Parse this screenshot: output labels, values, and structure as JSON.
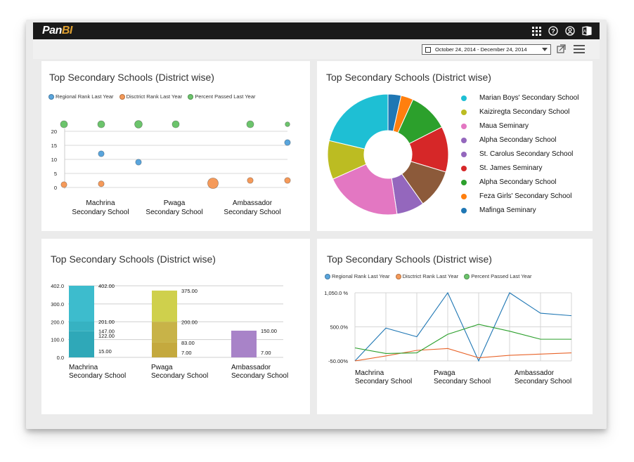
{
  "app": {
    "logo_main": "Pan",
    "logo_accent": "BI"
  },
  "toolbar": {
    "date_range": "October 24, 2014 - December 24, 2014"
  },
  "colors": {
    "blue": "#5aa5dc",
    "orange": "#f59a5a",
    "green": "#6cc46c"
  },
  "panel1": {
    "title": "Top Secondary Schools (District wise)",
    "legend": [
      "Regional Rank Last Year",
      "Disctrict Rank Last Year",
      "Percent Passed Last Year"
    ],
    "y_ticks": [
      "20",
      "15",
      "10",
      "5",
      "0"
    ],
    "x_labels": [
      {
        "line1": "Machrina",
        "line2": "Secondary School"
      },
      {
        "line1": "Pwaga",
        "line2": "Secondary School"
      },
      {
        "line1": "Ambassador",
        "line2": "Secondary School"
      }
    ]
  },
  "panel2": {
    "title": "Top Secondary Schools (District wise)",
    "legend": [
      {
        "label": "Marian Boys' Secondary School",
        "color": "#1ebfd4"
      },
      {
        "label": "Kaiziregta Secondary School",
        "color": "#bcbc22"
      },
      {
        "label": "Maua Seminary",
        "color": "#e377c2"
      },
      {
        "label": "Alpha Secondary School",
        "color": "#9467bd"
      },
      {
        "label": "St. Carolus Secondary School",
        "color": "#9467bd"
      },
      {
        "label": "St. James Seminary",
        "color": "#d62728"
      },
      {
        "label": "Alpha Secondary School",
        "color": "#2ca02c"
      },
      {
        "label": "Feza Girls' Secondary School",
        "color": "#ff7f0e"
      },
      {
        "label": "Mafinga Seminary",
        "color": "#1f77b4"
      }
    ]
  },
  "panel3": {
    "title": "Top Secondary Schools (District wise)",
    "y_ticks": [
      "402.0",
      "300.0",
      "200.0",
      "100.0",
      "0.0"
    ],
    "x_labels": [
      {
        "line1": "Machrina",
        "line2": "Secondary School"
      },
      {
        "line1": "Pwaga",
        "line2": "Secondary School"
      },
      {
        "line1": "Ambassador",
        "line2": "Secondary School"
      }
    ]
  },
  "panel4": {
    "title": "Top Secondary Schools (District wise)",
    "legend": [
      "Regional Rank Last Year",
      "Disctrict Rank Last Year",
      "Percent Passed Last Year"
    ],
    "y_ticks": [
      "1,050.0 %",
      "500.0%",
      "-50.00%"
    ],
    "x_labels": [
      {
        "line1": "Machrina",
        "line2": "Secondary School"
      },
      {
        "line1": "Pwaga",
        "line2": "Secondary School"
      },
      {
        "line1": "Ambassador",
        "line2": "Secondary School"
      }
    ]
  },
  "chart_data": [
    {
      "type": "scatter",
      "title": "Top Secondary Schools (District wise)",
      "ylim": [
        0,
        20
      ],
      "x": [
        0,
        1,
        2,
        3,
        4,
        5,
        6
      ],
      "series": [
        {
          "name": "Regional Rank Last Year",
          "color": "#5aa5dc",
          "x": [
            1,
            2,
            6
          ],
          "y": [
            12,
            9,
            16
          ]
        },
        {
          "name": "Disctrict Rank Last Year",
          "color": "#f59a5a",
          "x": [
            0,
            1,
            4,
            5,
            6
          ],
          "y": [
            1,
            1.3,
            1.5,
            2.5,
            2.5
          ],
          "sizes": [
            1,
            1,
            1.8,
            1,
            1
          ]
        },
        {
          "name": "Percent Passed Last Year",
          "color": "#6cc46c",
          "x": [
            0,
            1,
            2,
            3,
            5,
            6
          ],
          "y": [
            22.5,
            22.5,
            22.5,
            22.5,
            22.5,
            22.5
          ],
          "sizes": [
            1.2,
            1.2,
            1.3,
            1.2,
            1.2,
            0.8
          ]
        }
      ]
    },
    {
      "type": "pie",
      "title": "Top Secondary Schools (District wise)",
      "slices": [
        {
          "label": "Mafinga Seminary",
          "value": 3.5,
          "color": "#1f77b4"
        },
        {
          "label": "Feza Girls' Secondary School",
          "value": 3.3,
          "color": "#ff7f0e"
        },
        {
          "label": "Alpha Secondary School",
          "value": 10.7,
          "color": "#2ca02c"
        },
        {
          "label": "St. James Seminary",
          "value": 12.2,
          "color": "#d62728"
        },
        {
          "label": "St. Carolus Secondary School",
          "value": 10.5,
          "color": "#8c5a3a"
        },
        {
          "label": "Alpha Secondary School",
          "value": 7.4,
          "color": "#9467bd"
        },
        {
          "label": "Maua Seminary",
          "value": 20.7,
          "color": "#e377c2"
        },
        {
          "label": "Kaiziregta Secondary School",
          "value": 10.4,
          "color": "#bcbc22"
        },
        {
          "label": "Marian Boys' Secondary School",
          "value": 21.3,
          "color": "#1ebfd4"
        }
      ]
    },
    {
      "type": "bar",
      "title": "Top Secondary Schools (District wise)",
      "ylim": [
        0,
        402
      ],
      "categories": [
        "Machrina Secondary School",
        "Pwaga Secondary School",
        "Ambassador Secondary School"
      ],
      "stacks": [
        {
          "colors": [
            "#2fa8b8",
            "#36b2c2",
            "#3dbccd",
            "#4ccfdd"
          ],
          "segment_tops": [
            147,
            201,
            402
          ],
          "labels": [
            "402.00",
            "201.00",
            "147.00",
            "122.00",
            "15.00"
          ],
          "label_values": [
            402,
            201,
            147,
            122,
            15
          ]
        },
        {
          "colors": [
            "#c4a93e",
            "#c8b348",
            "#cfd04c"
          ],
          "segment_tops": [
            83,
            200,
            375
          ],
          "labels": [
            "375.00",
            "200.00",
            "83.00",
            "7.00"
          ],
          "label_values": [
            375,
            200,
            83,
            7
          ]
        },
        {
          "colors": [
            "#a883c8"
          ],
          "segment_tops": [
            150
          ],
          "labels": [
            "150.00",
            "7.00"
          ],
          "label_values": [
            150,
            7
          ]
        }
      ]
    },
    {
      "type": "line",
      "title": "Top Secondary Schools (District wise)",
      "ylim": [
        -50,
        1050
      ],
      "x": [
        0,
        1,
        2,
        3,
        4,
        5,
        6,
        7
      ],
      "series": [
        {
          "name": "Regional Rank Last Year",
          "color": "#1f77b4",
          "values": [
            -50,
            480,
            340,
            1050,
            -50,
            1050,
            720,
            680
          ]
        },
        {
          "name": "Disctrict Rank Last Year",
          "color": "#e8642a",
          "values": [
            -50,
            30,
            120,
            150,
            0,
            40,
            60,
            80
          ]
        },
        {
          "name": "Percent Passed Last Year",
          "color": "#2ca02c",
          "values": [
            160,
            70,
            80,
            380,
            540,
            430,
            300,
            300
          ]
        }
      ]
    }
  ]
}
